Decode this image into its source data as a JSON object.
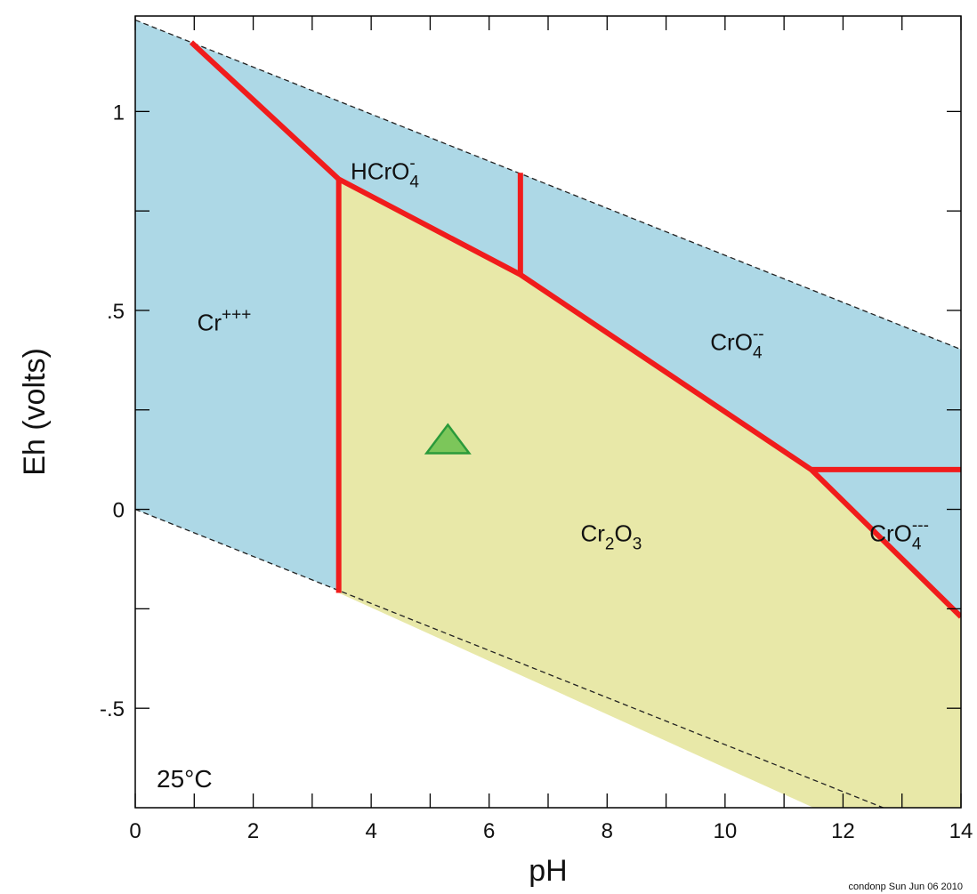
{
  "chart_data": {
    "type": "pourbaix",
    "x_label": "pH",
    "y_label": "Eh (volts)",
    "temperature": "25°C",
    "footer": "condonp Sun Jun 06 2010",
    "xlim": [
      0,
      14
    ],
    "ylim": [
      -0.75,
      1.24
    ],
    "xticks": [
      0,
      2,
      4,
      6,
      8,
      10,
      12,
      14
    ],
    "xminor_ticks": [
      1,
      3,
      5,
      7,
      9,
      11,
      13
    ],
    "yticks": [
      {
        "value": -0.5,
        "label": "-.5"
      },
      0,
      {
        "value": 0.5,
        "label": ".5"
      },
      1
    ],
    "yminor_ticks": [
      -0.25,
      0.25,
      0.75
    ],
    "regions": [
      {
        "color": "#add8e6",
        "x": [
          0,
          14,
          14,
          0
        ],
        "y": [
          1.23,
          0.402,
          -0.828,
          0
        ]
      },
      {
        "color": "#e8e8a8",
        "x": [
          3.45,
          6.53,
          11.46,
          14,
          14,
          11.5,
          3.45
        ],
        "y": [
          0.83,
          0.59,
          0.1,
          -0.27,
          -0.75,
          -0.75,
          -0.21
        ]
      }
    ],
    "water_lines": [
      {
        "x": [
          0,
          14
        ],
        "y": [
          1.23,
          0.402
        ]
      },
      {
        "x": [
          0,
          14
        ],
        "y": [
          0,
          -0.828
        ]
      }
    ],
    "boundaries": [
      {
        "color": "#f01c1c",
        "x": [
          0.95,
          3.45,
          6.53,
          11.46,
          14
        ],
        "y": [
          1.174,
          0.83,
          0.59,
          0.1,
          -0.27
        ]
      },
      {
        "color": "#f01c1c",
        "x": [
          3.45,
          3.45
        ],
        "y": [
          0.83,
          -0.21
        ]
      },
      {
        "color": "#f01c1c",
        "x": [
          6.53,
          6.53
        ],
        "y": [
          0.59,
          0.846
        ]
      },
      {
        "color": "#f01c1c",
        "x": [
          11.46,
          14
        ],
        "y": [
          0.1,
          0.1
        ]
      }
    ],
    "labels": [
      {
        "x": 1.05,
        "y": 0.45,
        "parts": [
          {
            "text": "Cr"
          },
          {
            "text": "+++",
            "pos": "super"
          }
        ]
      },
      {
        "x": 3.65,
        "y": 0.83,
        "parts": [
          {
            "text": "HCrO"
          },
          {
            "text": "-",
            "pos": "super"
          },
          {
            "text": "4",
            "pos": "sub"
          }
        ]
      },
      {
        "x": 9.75,
        "y": 0.4,
        "parts": [
          {
            "text": "CrO"
          },
          {
            "text": "--",
            "pos": "super"
          },
          {
            "text": "4",
            "pos": "sub"
          }
        ]
      },
      {
        "x": 12.45,
        "y": -0.08,
        "parts": [
          {
            "text": "CrO"
          },
          {
            "text": "---",
            "pos": "super"
          },
          {
            "text": "4",
            "pos": "sub"
          }
        ]
      },
      {
        "x": 7.55,
        "y": -0.08,
        "parts": [
          {
            "text": "Cr"
          },
          {
            "text": "2",
            "pos": "sub"
          },
          {
            "text": "O"
          },
          {
            "text": "3",
            "pos": "sub"
          }
        ]
      }
    ],
    "points": {
      "color": "#7cc65a",
      "edge": "#2a9a3a",
      "x": [
        5.3
      ],
      "y": [
        0.17
      ]
    }
  }
}
